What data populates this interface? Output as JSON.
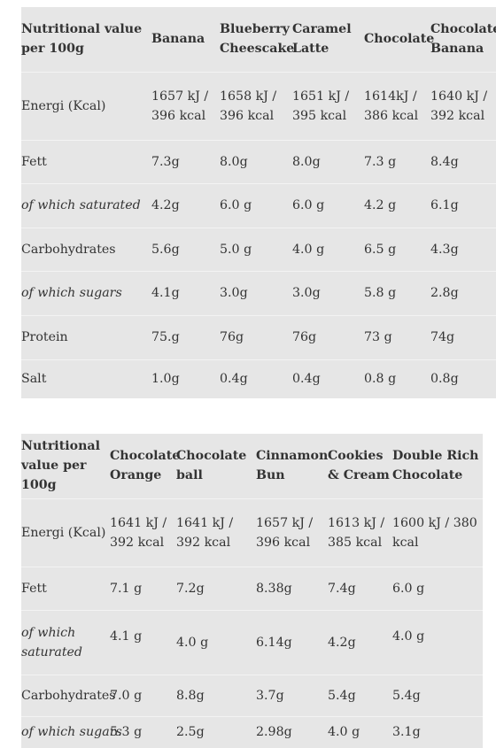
{
  "table1": {
    "header": [
      "Nutritional value per 100g",
      "Banana",
      "Blueberry Cheescake",
      "Caramel Latte",
      "Chocolate",
      "Chocolate Banana"
    ],
    "rows": [
      {
        "label": "Energi (Kcal)",
        "italic": false,
        "values": [
          "1657 kJ / 396 kcal",
          "1658 kJ / 396 kcal",
          "1651 kJ / 395 kcal",
          "1614kJ / 386 kcal",
          "1640 kJ / 392 kcal"
        ]
      },
      {
        "label": "Fett",
        "italic": false,
        "values": [
          "7.3g",
          "8.0g",
          "8.0g",
          "7.3 g",
          "8.4g"
        ]
      },
      {
        "label": "of which saturated",
        "italic": true,
        "values": [
          "4.2g",
          "6.0 g",
          "6.0 g",
          "4.2 g",
          "6.1g"
        ]
      },
      {
        "label": "Carbohydrates",
        "italic": false,
        "values": [
          "5.6g",
          "5.0 g",
          "4.0 g",
          "6.5 g",
          "4.3g"
        ]
      },
      {
        "label": "of which sugars",
        "italic": true,
        "values": [
          "4.1g",
          "3.0g",
          "3.0g",
          "5.8 g",
          "2.8g"
        ]
      },
      {
        "label": "Protein",
        "italic": false,
        "values": [
          "75.g",
          "76g",
          "76g",
          "73 g",
          "74g"
        ]
      },
      {
        "label": "Salt",
        "italic": false,
        "values": [
          "1.0g",
          "0.4g",
          "0.4g",
          "0.8 g",
          "0.8g"
        ]
      }
    ]
  },
  "table2": {
    "header": [
      "Nutritional value per 100g",
      "Chocolate Orange",
      "Chocolate ball",
      "Cinnamon Bun",
      "Cookies & Cream",
      "Double Rich Chocolate"
    ],
    "rows": [
      {
        "label": "Energi (Kcal)",
        "italic": false,
        "values": [
          "1641 kJ / 392 kcal",
          "1641 kJ / 392 kcal",
          "1657 kJ / 396 kcal",
          "1613 kJ / 385 kcal",
          "1600 kJ / 380 kcal"
        ]
      },
      {
        "label": "Fett",
        "italic": false,
        "values": [
          "7.1 g",
          "7.2g",
          "8.38g",
          "7.4g",
          "6.0 g"
        ]
      },
      {
        "label": "of which saturated",
        "italic": true,
        "values": [
          "4.1 g",
          "4.0 g",
          "6.14g",
          "4.2g",
          "4.0 g"
        ]
      },
      {
        "label": "Carbohydrates",
        "italic": false,
        "values": [
          "7.0 g",
          "8.8g",
          "3.7g",
          "5.4g",
          "5.4g"
        ]
      },
      {
        "label": "of which sugars",
        "italic": true,
        "values": [
          "5.3 g",
          "2.5g",
          "2.98g",
          "4.0 g",
          "3.1g"
        ]
      }
    ]
  }
}
